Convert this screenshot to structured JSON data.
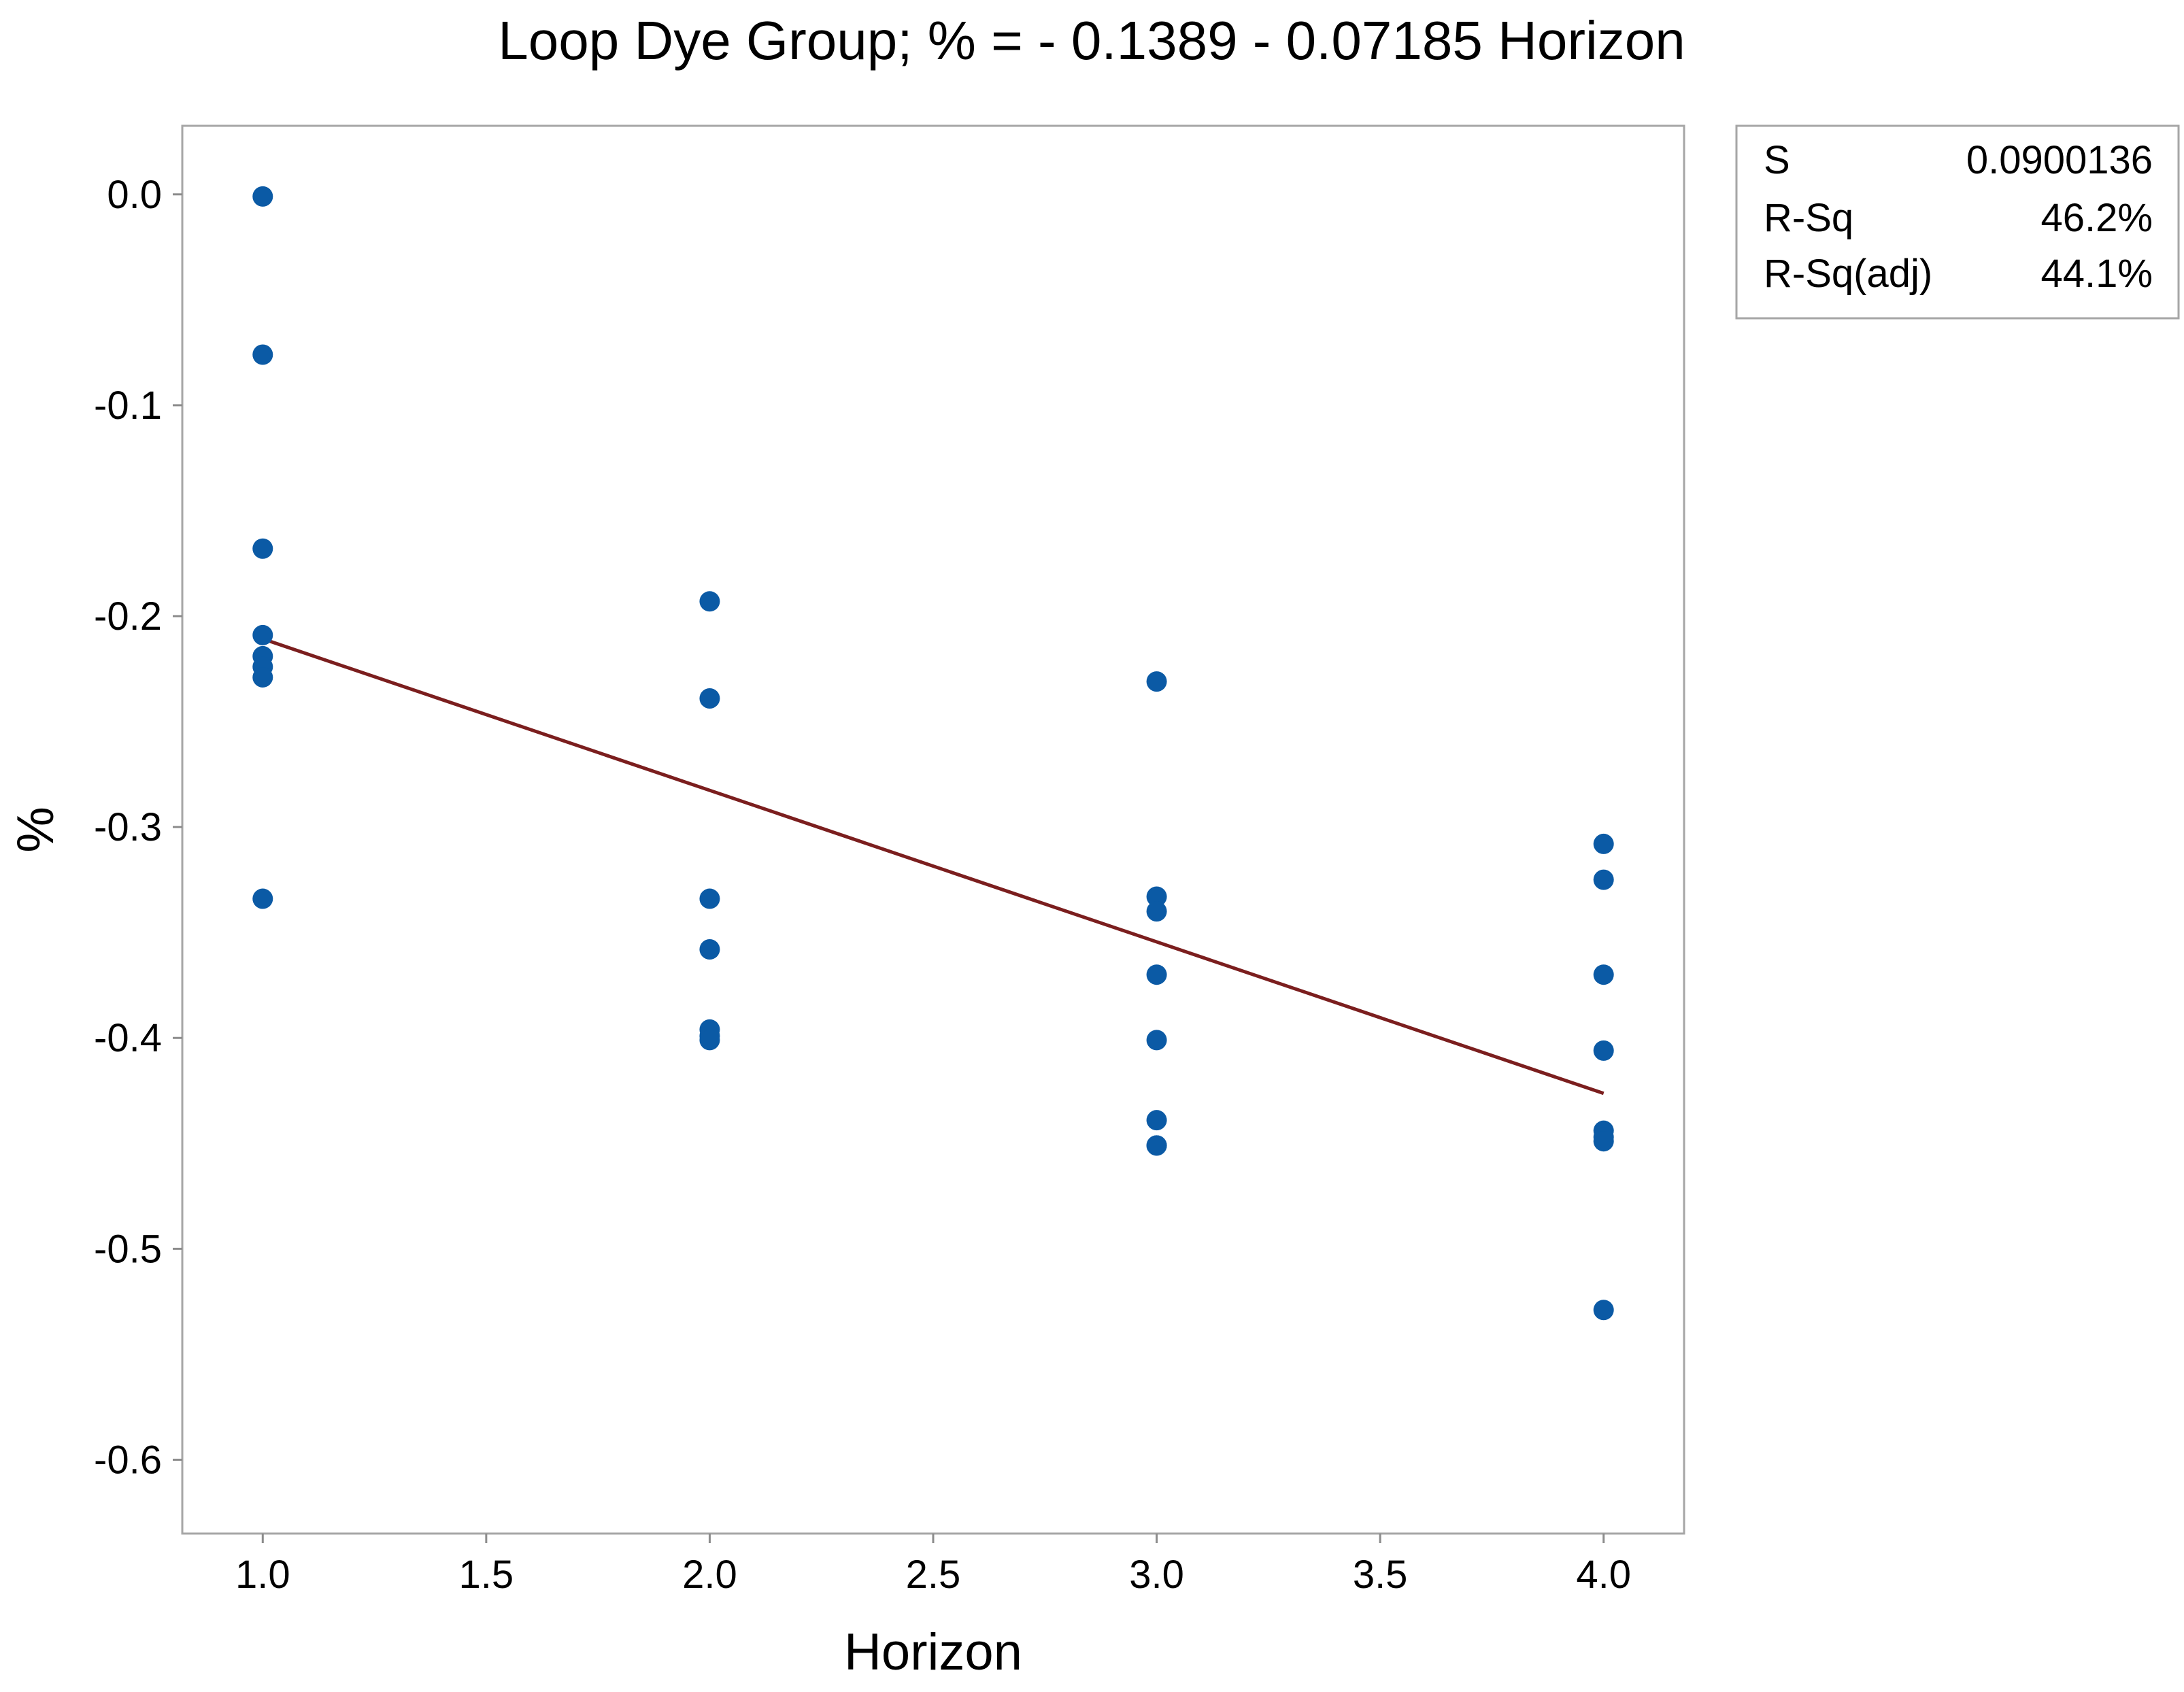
{
  "chart_data": {
    "type": "scatter",
    "title": "Loop Dye Group; % = - 0.1389 - 0.07185 Horizon",
    "xlabel": "Horizon",
    "ylabel": "%",
    "xlim": [
      0.82,
      4.18
    ],
    "ylim": [
      -0.635,
      0.0325
    ],
    "x_ticks": [
      1.0,
      1.5,
      2.0,
      2.5,
      3.0,
      3.5,
      4.0
    ],
    "x_tick_labels": [
      "1.0",
      "1.5",
      "2.0",
      "2.5",
      "3.0",
      "3.5",
      "4.0"
    ],
    "y_ticks": [
      0.0,
      -0.1,
      -0.2,
      -0.3,
      -0.4,
      -0.5,
      -0.6
    ],
    "y_tick_labels": [
      "0.0",
      "-0.1",
      "-0.2",
      "-0.3",
      "-0.4",
      "-0.5",
      "-0.6"
    ],
    "grid": false,
    "series": [
      {
        "name": "Observed",
        "color": "#0b5aa5",
        "x": [
          1,
          1,
          1,
          1,
          1,
          1,
          1,
          1,
          2,
          2,
          2,
          2,
          2,
          2,
          2,
          3,
          3,
          3,
          3,
          3,
          3,
          3,
          3,
          4,
          4,
          4,
          4,
          4,
          4,
          4,
          4
        ],
        "y": [
          -0.001,
          -0.076,
          -0.168,
          -0.209,
          -0.219,
          -0.224,
          -0.229,
          -0.334,
          -0.193,
          -0.239,
          -0.334,
          -0.358,
          -0.396,
          -0.399,
          -0.401,
          -0.231,
          -0.333,
          -0.34,
          -0.37,
          -0.401,
          -0.439,
          -0.451,
          -0.451,
          -0.308,
          -0.325,
          -0.37,
          -0.406,
          -0.444,
          -0.447,
          -0.449,
          -0.529
        ]
      }
    ],
    "fit_line": {
      "name": "Fitted line",
      "intercept": -0.1389,
      "slope": -0.07185,
      "x_range": [
        1.0,
        4.0
      ],
      "color": "#7b1e1e"
    },
    "legend": {
      "placement": "top-right, outside plot",
      "rows": [
        {
          "label": "S",
          "value": "0.0900136"
        },
        {
          "label": "R-Sq",
          "value": "46.2%"
        },
        {
          "label": "R-Sq(adj)",
          "value": "44.1%"
        }
      ]
    }
  }
}
